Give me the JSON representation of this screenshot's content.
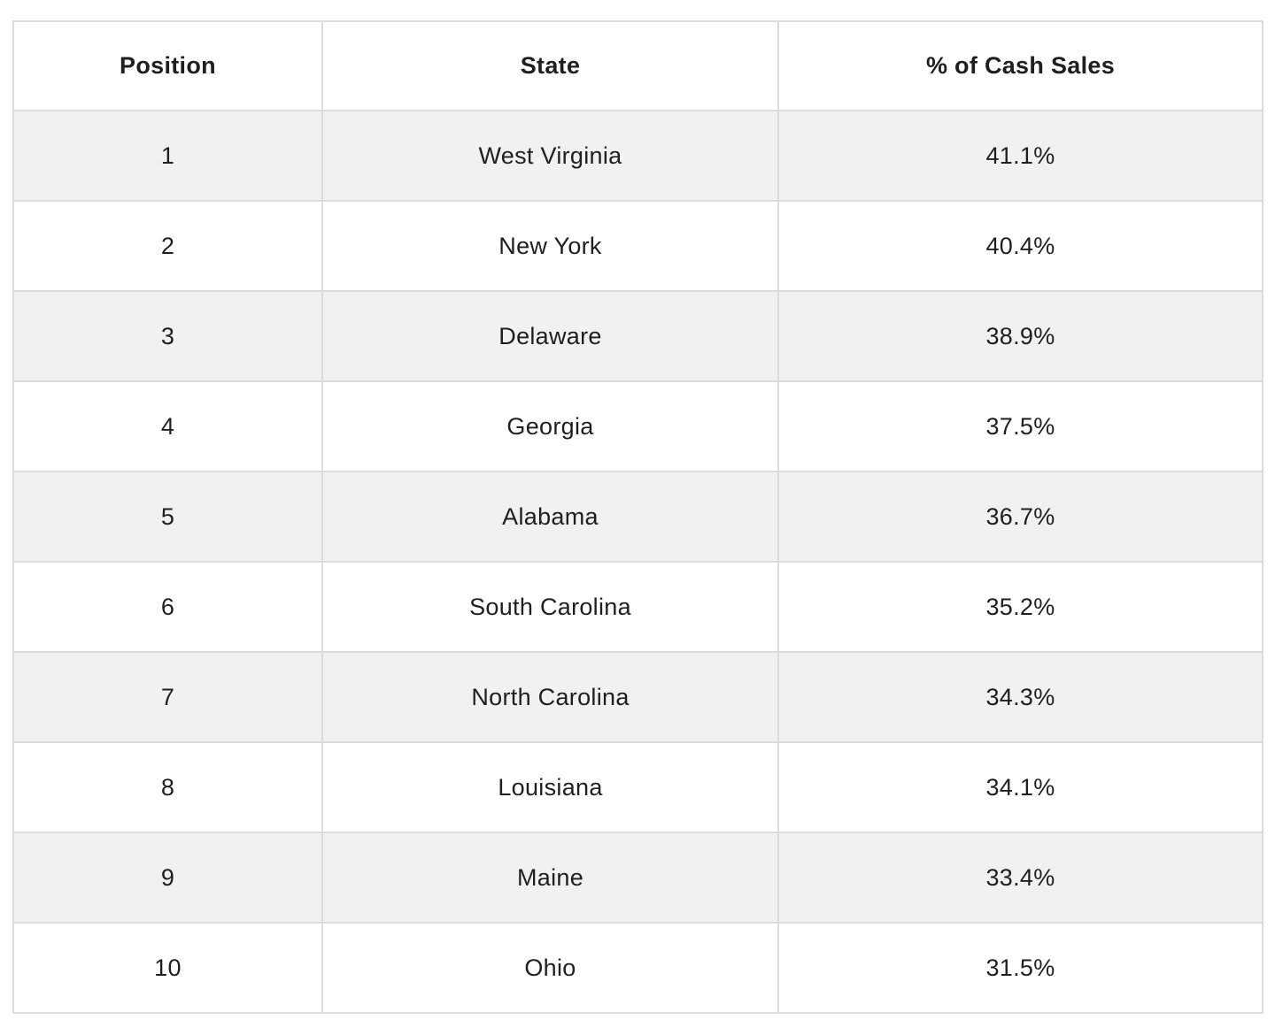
{
  "table": {
    "columns": [
      "Position",
      "State",
      "% of Cash Sales"
    ],
    "rows": [
      {
        "position": "1",
        "state": "West Virginia",
        "percent": "41.1%"
      },
      {
        "position": "2",
        "state": "New York",
        "percent": "40.4%"
      },
      {
        "position": "3",
        "state": "Delaware",
        "percent": "38.9%"
      },
      {
        "position": "4",
        "state": "Georgia",
        "percent": "37.5%"
      },
      {
        "position": "5",
        "state": "Alabama",
        "percent": "36.7%"
      },
      {
        "position": "6",
        "state": "South Carolina",
        "percent": "35.2%"
      },
      {
        "position": "7",
        "state": "North Carolina",
        "percent": "34.3%"
      },
      {
        "position": "8",
        "state": "Louisiana",
        "percent": "34.1%"
      },
      {
        "position": "9",
        "state": "Maine",
        "percent": "33.4%"
      },
      {
        "position": "10",
        "state": "Ohio",
        "percent": "31.5%"
      }
    ]
  },
  "chart_data": {
    "type": "table",
    "title": "",
    "columns": [
      "Position",
      "State",
      "% of Cash Sales"
    ],
    "categories": [
      "West Virginia",
      "New York",
      "Delaware",
      "Georgia",
      "Alabama",
      "South Carolina",
      "North Carolina",
      "Louisiana",
      "Maine",
      "Ohio"
    ],
    "positions": [
      1,
      2,
      3,
      4,
      5,
      6,
      7,
      8,
      9,
      10
    ],
    "values_percent_cash_sales": [
      41.1,
      40.4,
      38.9,
      37.5,
      36.7,
      35.2,
      34.3,
      34.1,
      33.4,
      31.5
    ]
  },
  "colors": {
    "stripe_row_bg": "#f1f1f1",
    "plain_row_bg": "#ffffff",
    "border": "#dcdcdc",
    "text": "#1f1f1f"
  }
}
